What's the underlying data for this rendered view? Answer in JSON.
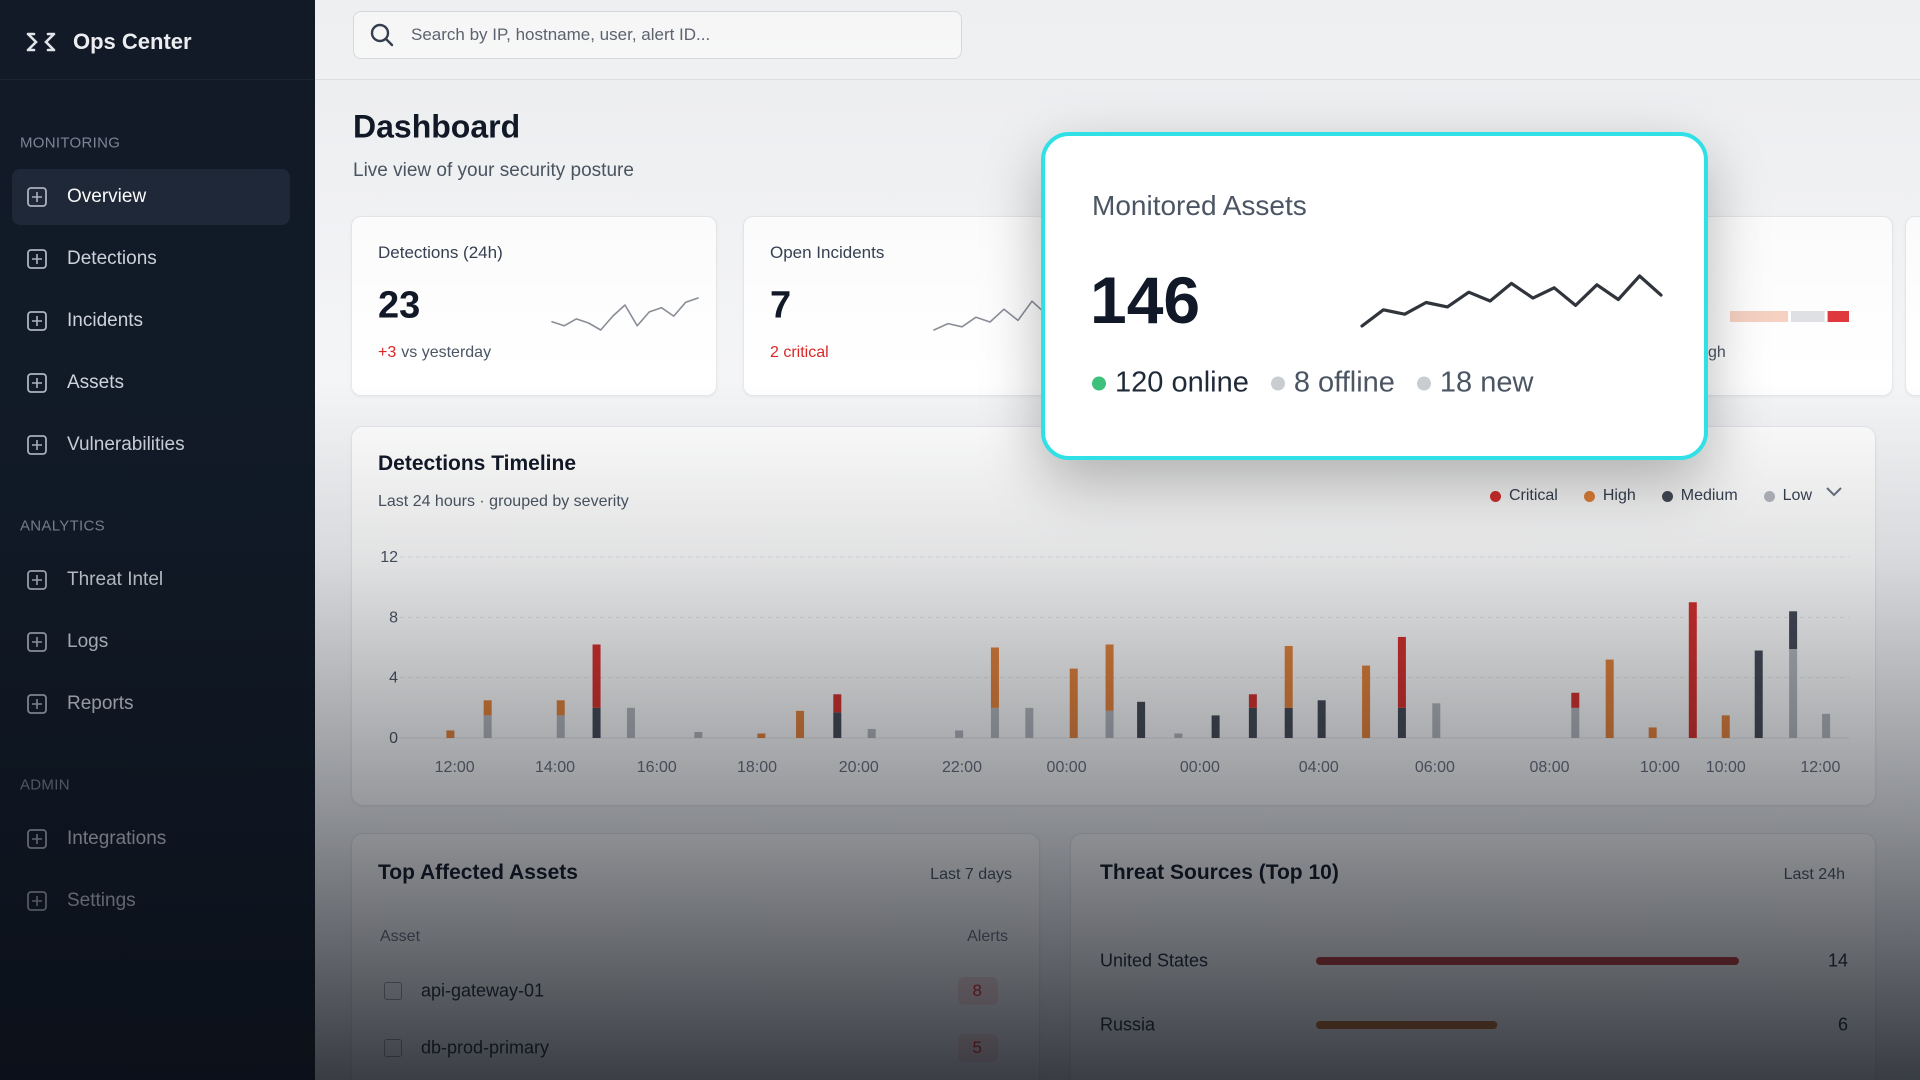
{
  "sidebar": {
    "brand": "Ops Center",
    "sections": [
      {
        "title": "MONITORING",
        "items": [
          "Overview",
          "Detections",
          "Incidents",
          "Assets",
          "Vulnerabilities"
        ]
      },
      {
        "title": "ANALYTICS",
        "items": [
          "Threat Intel",
          "Logs",
          "Reports"
        ]
      },
      {
        "title": "ADMIN",
        "items": [
          "Integrations",
          "Settings"
        ]
      }
    ]
  },
  "search": {
    "placeholder": "Search by IP, hostname, user, alert ID..."
  },
  "header": {
    "title": "Dashboard",
    "subtitle": "Live view of your security posture"
  },
  "kpis": [
    {
      "label": "Detections (24h)",
      "value": 23,
      "delta": "+3",
      "note": "vs yesterday",
      "sparkline": [
        8,
        5,
        10,
        7,
        2,
        12,
        20,
        5,
        15,
        18,
        12,
        22,
        25
      ]
    },
    {
      "label": "Open Incidents",
      "value": 7,
      "note": "2 critical",
      "sparkline": [
        2,
        6,
        4,
        10,
        7,
        15,
        8,
        20,
        12,
        22
      ]
    },
    {
      "label": "Monitored Assets",
      "value": 146,
      "sparkline": [
        7,
        18,
        15,
        23,
        20,
        30,
        24,
        36,
        26,
        33,
        21,
        35,
        25,
        41,
        28
      ],
      "status": [
        {
          "label": "120 online",
          "color": "#3cc07a"
        },
        {
          "label": "8 offline",
          "color": "#c9ccd1"
        },
        {
          "label": "18 new",
          "color": "#c9ccd1"
        }
      ]
    },
    {
      "note": "gh",
      "segments": [
        {
          "value": 5,
          "color": "#f7d2c3"
        },
        {
          "value": 3,
          "color": "#dfe1e5"
        },
        {
          "value": 2,
          "color": "#e0393e"
        }
      ]
    }
  ],
  "chart_data": [
    {
      "type": "bar",
      "title": "Detections Timeline",
      "subtitle": "Last 24 hours · grouped by severity",
      "stacked": true,
      "grid": true,
      "x": [
        2.4,
        5.0,
        10.1,
        12.6,
        15.0,
        19.7,
        24.1,
        26.8,
        29.4,
        31.8,
        37.9,
        40.4,
        42.8,
        45.9,
        48.4,
        50.6,
        53.2,
        55.8,
        58.4,
        60.9,
        63.2,
        66.3,
        68.8,
        71.2,
        80.9,
        83.3,
        86.3,
        89.1,
        91.4,
        93.7,
        96.1,
        98.4
      ],
      "xlim": [
        0,
        100
      ],
      "xticks": [
        {
          "value": 2.7,
          "label": "12:00"
        },
        {
          "value": 9.7,
          "label": "14:00"
        },
        {
          "value": 16.8,
          "label": "16:00"
        },
        {
          "value": 23.8,
          "label": "18:00"
        },
        {
          "value": 30.9,
          "label": "20:00"
        },
        {
          "value": 38.1,
          "label": "22:00"
        },
        {
          "value": 45.4,
          "label": "00:00"
        },
        {
          "value": 54.7,
          "label": "00:00"
        },
        {
          "value": 63.0,
          "label": "04:00"
        },
        {
          "value": 71.1,
          "label": "06:00"
        },
        {
          "value": 79.1,
          "label": "08:00"
        },
        {
          "value": 86.8,
          "label": "10:00"
        },
        {
          "value": 91.4,
          "label": "10:00"
        },
        {
          "value": 98.0,
          "label": "12:00"
        }
      ],
      "ylim": [
        0,
        12
      ],
      "yticks": [
        0,
        4,
        8,
        12
      ],
      "series": [
        {
          "name": "Critical",
          "color": "#d9302c",
          "values": [
            null,
            null,
            null,
            4.2,
            null,
            null,
            null,
            null,
            1.2,
            null,
            null,
            null,
            null,
            null,
            null,
            null,
            null,
            null,
            0.9,
            null,
            null,
            null,
            4.7,
            null,
            1,
            null,
            null,
            9,
            null,
            null,
            null,
            null
          ]
        },
        {
          "name": "High",
          "color": "#e8843a",
          "values": [
            0.5,
            1,
            1,
            null,
            null,
            null,
            0.3,
            1.8,
            null,
            null,
            null,
            4,
            null,
            4.6,
            4.4,
            null,
            null,
            null,
            null,
            4.1,
            null,
            4.8,
            null,
            null,
            null,
            5.2,
            0.7,
            null,
            1.5,
            null,
            null,
            null
          ]
        },
        {
          "name": "Medium",
          "color": "#454b57",
          "values": [
            null,
            null,
            null,
            2,
            null,
            null,
            null,
            null,
            1.7,
            null,
            null,
            null,
            null,
            null,
            null,
            2.4,
            null,
            1.5,
            2,
            2,
            2.5,
            null,
            2,
            null,
            null,
            null,
            null,
            null,
            null,
            5.8,
            2.5,
            null
          ]
        },
        {
          "name": "Low",
          "color": "#b5b8bf",
          "values": [
            null,
            1.5,
            1.5,
            null,
            2,
            0.4,
            null,
            null,
            null,
            0.6,
            0.5,
            2,
            2,
            null,
            1.8,
            null,
            0.3,
            null,
            null,
            null,
            null,
            null,
            null,
            2.3,
            2,
            null,
            null,
            null,
            null,
            null,
            5.9,
            1.6
          ]
        }
      ]
    },
    {
      "type": "hbar",
      "title": "Threat Sources (Top 10)",
      "subtitle": "Last 24h",
      "categories": [
        "United States",
        "Russia"
      ],
      "values": [
        14,
        6
      ],
      "colors": [
        "#b83a36",
        "#c2702e"
      ]
    }
  ],
  "assets_table": {
    "title": "Top Affected Assets",
    "period": "Last 7 days",
    "columns": [
      "Asset",
      "Alerts"
    ],
    "rows": [
      [
        "api-gateway-01",
        8
      ],
      [
        "db-prod-primary",
        5
      ]
    ]
  }
}
